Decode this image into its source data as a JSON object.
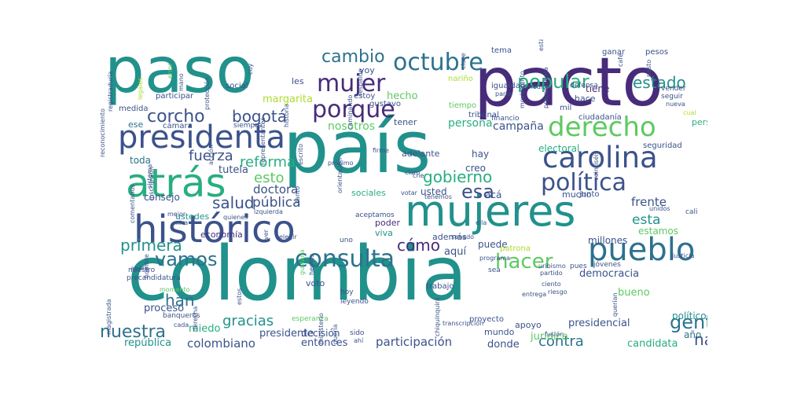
{
  "palette": {
    "background": "#ffffff",
    "purple_dark": "#472c7a",
    "blue_dark": "#3b528b",
    "blue": "#2c728e",
    "teal": "#21918c",
    "green_teal": "#28ae80",
    "green": "#5ec962",
    "lime": "#addc30",
    "yellow": "#fde725"
  },
  "words": {
    "w001": "colombia",
    "w002": "país",
    "w003": "pacto",
    "w004": "paso",
    "w005": "mujeres",
    "w006": "histórico",
    "w007": "atrás",
    "w008": "presidenta",
    "w009": "carolina",
    "w010": "derecho",
    "w011": "pueblo",
    "w012": "política",
    "w013": "mujer",
    "w014": "octubre",
    "w015": "porque",
    "w016": "consulta",
    "w017": "vamos",
    "w018": "popular",
    "w019": "cambio",
    "w020": "corcho",
    "w021": "bogotá",
    "w022": "estado",
    "w023": "hacer",
    "w024": "nuestra",
    "w025": "primera",
    "w026": "gobierno",
    "w027": "esa",
    "w028": "gente",
    "w029": "reforma",
    "w030": "fuerza",
    "w031": "esto",
    "w032": "salud",
    "w033": "pública",
    "w034": "doctora",
    "w035": "cómo",
    "w036": "contra",
    "w037": "nacional",
    "w038": "gracias",
    "w039": "han",
    "w040": "colombiano",
    "w041": "república",
    "w042": "participación",
    "w043": "candidata",
    "w044": "entonces",
    "w045": "donde",
    "w046": "frente",
    "w047": "esta",
    "w048": "campaña",
    "w049": "nosotros",
    "w050": "persona",
    "w051": "hecho",
    "w052": "tutela",
    "w053": "margarita",
    "w054": "toda",
    "w055": "consejo",
    "w056": "ustedes",
    "w057": "economía",
    "w058": "proceso",
    "w059": "miedo",
    "w060": "presidente",
    "w061": "decisión",
    "w062": "jurídica",
    "w063": "presidencial",
    "w064": "democracia",
    "w065": "bueno",
    "w066": "año",
    "w067": "político",
    "w068": "estamos",
    "w069": "millones",
    "w070": "puede",
    "w071": "aquí",
    "w072": "además",
    "w073": "poder",
    "w074": "viva",
    "w075": "usted",
    "w076": "acá",
    "w077": "creo",
    "w078": "hay",
    "w079": "electoral",
    "w080": "tener",
    "w081": "adelante",
    "w082": "sociales",
    "w083": "mucho",
    "w084": "seguridad",
    "w085": "personería",
    "w086": "tiene",
    "w087": "hace",
    "w088": "les",
    "w089": "voy",
    "w090": "estoy",
    "w091": "gustavo",
    "w092": "participar",
    "w093": "medida",
    "w094": "social",
    "w095": "ese",
    "w096": "cámara",
    "w097": "siempre",
    "w098": "tema",
    "w099": "nariño",
    "w100": "igualdad",
    "w101": "mil",
    "w102": "ciudadanía",
    "w103": "ganar",
    "w104": "pesos",
    "w105": "tiempo",
    "w106": "tribunal",
    "w107": "financio",
    "w108": "defensa",
    "w109": "parte",
    "w110": "médica",
    "w111": "vender",
    "w112": "seguir",
    "w113": "nueva",
    "w114": "cual",
    "w115": "mundo",
    "w116": "apoyo",
    "w117": "proyecto",
    "w118": "esperanza",
    "w119": "sido",
    "w120": "leyendo",
    "w121": "hoy",
    "w122": "voto",
    "w123": "trabajo",
    "w124": "sea",
    "w125": "uno",
    "w126": "nuestro",
    "w127": "precandidatura",
    "w128": "banqueros",
    "w129": "cada",
    "w130": "momento",
    "w131": "ahora",
    "w132": "mejor",
    "w133": "mira",
    "w134": "quienes",
    "w135": "izquierda",
    "w136": "elegir",
    "w137": "aceptamos",
    "w138": "tenemos",
    "w139": "votar",
    "w140": "senado",
    "w141": "cne",
    "w142": "claro",
    "w143": "próximo",
    "w144": "firme",
    "w145": "programa",
    "w146": "ella",
    "w147": "uribismo",
    "w148": "partido",
    "w149": "patrona",
    "w150": "junto",
    "w151": "unidos",
    "w152": "justicia",
    "w153": "cali",
    "w154": "jóvenes",
    "w155": "pues",
    "w156": "ciento",
    "w157": "entrega",
    "w158": "riesgo",
    "w159": "fusión",
    "w160": "ahí",
    "w161": "transcripción",
    "w162": "chiquinquirá",
    "w163": "magistrada",
    "w164": "derecha",
    "w165": "registraduría",
    "w166": "reconocimiento",
    "w167": "error",
    "w168": "legales",
    "w169": "mano",
    "w170": "cuy",
    "w171": "protección",
    "w172": "sistema",
    "w173": "inscripción",
    "w174": "acción",
    "w175": "representantes",
    "w176": "escrito",
    "w177": "historia",
    "w178": "caminando",
    "w179": "veintiséis",
    "w180": "pasto",
    "w181": "café",
    "w182": "precandidata",
    "w183": "movimiento",
    "w184": "estar",
    "w185": "respaldo",
    "w186": "clase",
    "w187": "gustaría",
    "w188": "querían",
    "w189": "ministerio",
    "w190": "quería",
    "w191": "estos",
    "w192": "hemos",
    "w193": "hombre",
    "w194": "comentarios",
    "w195": "ver",
    "w196": "tanto",
    "w197": "orientación"
  }
}
